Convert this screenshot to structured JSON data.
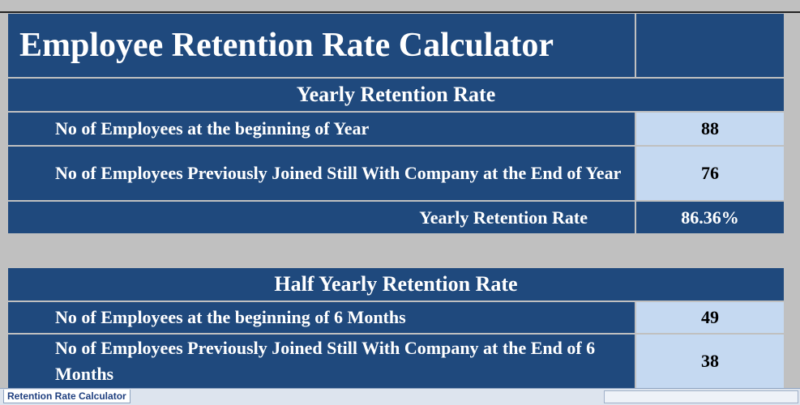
{
  "title": "Employee Retention Rate Calculator",
  "yearly": {
    "heading": "Yearly Retention Rate",
    "rows": [
      {
        "label": "No of Employees at the beginning of Year",
        "value": "88"
      },
      {
        "label": "No of Employees Previously Joined Still With Company at the End of Year",
        "value": "76"
      }
    ],
    "result": {
      "label": "Yearly Retention Rate",
      "value": "86.36%"
    }
  },
  "half_yearly": {
    "heading": "Half Yearly Retention Rate",
    "rows": [
      {
        "label": "No of Employees at the beginning of 6 Months",
        "value": "49"
      },
      {
        "label": "No of Employees Previously Joined Still With Company at the End of 6 Months",
        "value": "38"
      }
    ]
  },
  "sheet_tab": "Retention Rate Calculator"
}
